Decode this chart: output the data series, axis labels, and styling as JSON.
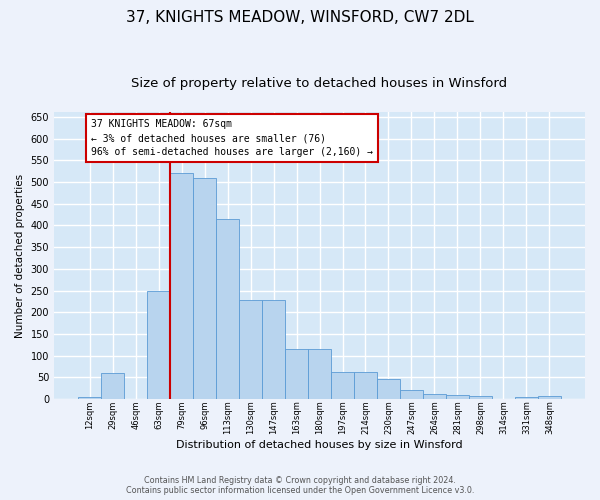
{
  "title1": "37, KNIGHTS MEADOW, WINSFORD, CW7 2DL",
  "title2": "Size of property relative to detached houses in Winsford",
  "xlabel": "Distribution of detached houses by size in Winsford",
  "ylabel": "Number of detached properties",
  "footer1": "Contains HM Land Registry data © Crown copyright and database right 2024.",
  "footer2": "Contains public sector information licensed under the Open Government Licence v3.0.",
  "annotation_line1": "37 KNIGHTS MEADOW: 67sqm",
  "annotation_line2": "← 3% of detached houses are smaller (76)",
  "annotation_line3": "96% of semi-detached houses are larger (2,160) →",
  "bar_values": [
    5,
    60,
    0,
    250,
    520,
    510,
    415,
    228,
    228,
    116,
    116,
    63,
    63,
    46,
    22,
    13,
    10,
    8,
    0,
    5,
    8
  ],
  "bin_labels": [
    "12sqm",
    "29sqm",
    "46sqm",
    "63sqm",
    "79sqm",
    "96sqm",
    "113sqm",
    "130sqm",
    "147sqm",
    "163sqm",
    "180sqm",
    "197sqm",
    "214sqm",
    "230sqm",
    "247sqm",
    "264sqm",
    "281sqm",
    "298sqm",
    "314sqm",
    "331sqm",
    "348sqm"
  ],
  "bar_color": "#b8d4ee",
  "bar_edge_color": "#5b9bd5",
  "vline_color": "#cc0000",
  "vline_x": 3.5,
  "annotation_box_edgecolor": "#cc0000",
  "ylim": [
    0,
    660
  ],
  "yticks": [
    0,
    50,
    100,
    150,
    200,
    250,
    300,
    350,
    400,
    450,
    500,
    550,
    600,
    650
  ],
  "bg_color": "#d6e8f7",
  "grid_color": "#ffffff",
  "fig_bg_color": "#edf2fb",
  "title1_fontsize": 11,
  "title2_fontsize": 9.5
}
